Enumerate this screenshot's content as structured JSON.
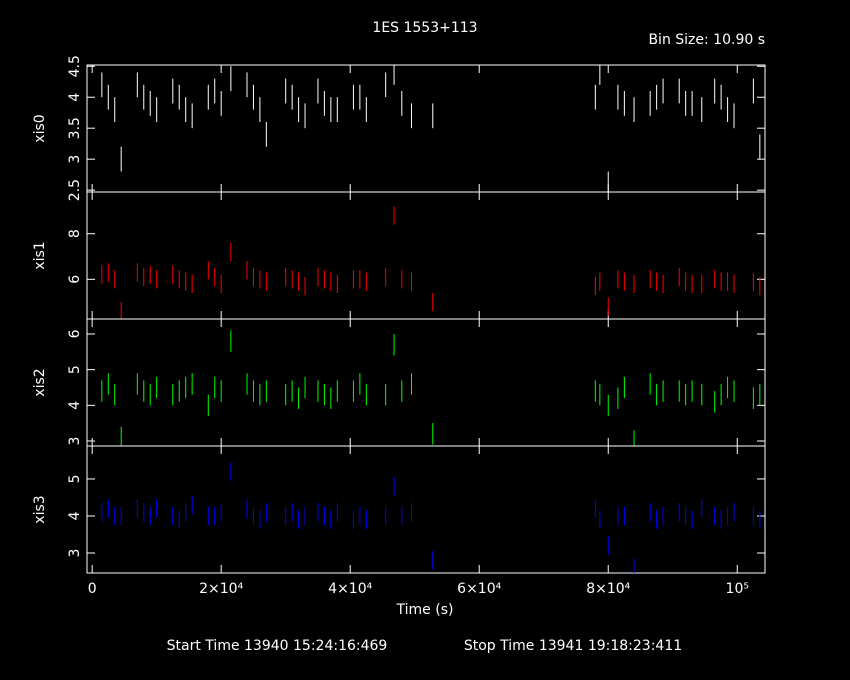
{
  "title": "1ES 1553+113",
  "bin_size": "Bin Size: 10.90 s",
  "xlabel": "Time (s)",
  "start_time": "Start Time 13940 15:24:16:469",
  "stop_time": "Stop Time 13941 19:18:23:411",
  "chart_data": [
    {
      "type": "scatter",
      "ylabel": "xis0",
      "color": "#ffffff",
      "xlim": [
        -800,
        104300
      ],
      "ylim": [
        2.47,
        4.52
      ],
      "yticks": [
        2.5,
        3,
        3.5,
        4,
        4.5
      ],
      "yerr": 0.2,
      "x": [
        1500,
        2500,
        3500,
        4500,
        7000,
        8000,
        9000,
        10000,
        12500,
        13500,
        14500,
        15500,
        18000,
        19000,
        20000,
        21500,
        24000,
        25000,
        26000,
        27000,
        30000,
        31000,
        32000,
        33000,
        35000,
        36000,
        37000,
        38000,
        40500,
        41500,
        42500,
        45500,
        46800,
        48000,
        49500,
        52800,
        78000,
        78700,
        80000,
        81500,
        82500,
        84000,
        86500,
        87500,
        88500,
        91000,
        92000,
        93000,
        94500,
        96500,
        97500,
        98500,
        99500,
        102500,
        103500
      ],
      "values": [
        4.2,
        4.0,
        3.8,
        3.0,
        4.2,
        4.0,
        3.9,
        3.8,
        4.1,
        4.0,
        3.8,
        3.7,
        4.0,
        4.1,
        3.9,
        4.3,
        4.2,
        4.0,
        3.8,
        3.4,
        4.1,
        4.0,
        3.8,
        3.7,
        4.1,
        3.9,
        3.8,
        3.8,
        4.0,
        4.0,
        3.8,
        4.2,
        4.4,
        3.9,
        3.7,
        3.7,
        4.0,
        4.4,
        2.6,
        4.0,
        3.9,
        3.8,
        3.9,
        4.0,
        4.1,
        4.1,
        3.9,
        3.9,
        3.8,
        4.1,
        4.0,
        3.8,
        3.7,
        4.1,
        3.2
      ]
    },
    {
      "type": "scatter",
      "ylabel": "xis1",
      "color": "#ff0000",
      "xlim": [
        -800,
        104300
      ],
      "ylim": [
        4.26,
        9.83
      ],
      "yticks": [
        6,
        8
      ],
      "yerr": 0.4,
      "x": [
        1500,
        2500,
        3500,
        4500,
        7000,
        8000,
        9000,
        10000,
        12500,
        13500,
        14500,
        15500,
        18000,
        19000,
        20000,
        21500,
        24000,
        25000,
        26000,
        27000,
        30000,
        31000,
        32000,
        33000,
        35000,
        36000,
        37000,
        38000,
        40500,
        41500,
        42500,
        45500,
        46800,
        48000,
        49500,
        52800,
        78000,
        78700,
        80000,
        81500,
        82500,
        84000,
        86500,
        87500,
        88500,
        91000,
        92000,
        93000,
        94500,
        96500,
        97500,
        98500,
        99500,
        102500,
        103500
      ],
      "values": [
        6.2,
        6.3,
        6.0,
        4.6,
        6.3,
        6.1,
        6.2,
        6.0,
        6.2,
        6.0,
        5.9,
        5.8,
        6.4,
        6.1,
        5.8,
        7.2,
        6.4,
        6.1,
        6.0,
        5.9,
        6.1,
        6.0,
        5.9,
        5.7,
        6.1,
        6.0,
        5.9,
        5.8,
        6.0,
        6.0,
        5.9,
        6.1,
        8.8,
        6.0,
        5.9,
        5.0,
        5.7,
        5.9,
        4.8,
        6.0,
        5.9,
        5.8,
        6.0,
        5.9,
        5.8,
        6.1,
        5.9,
        5.8,
        5.8,
        6.0,
        5.9,
        5.9,
        5.8,
        5.9,
        5.7
      ]
    },
    {
      "type": "scatter",
      "ylabel": "xis2",
      "color": "#00ff00",
      "xlim": [
        -800,
        104300
      ],
      "ylim": [
        2.86,
        6.42
      ],
      "yticks": [
        3,
        4,
        5,
        6
      ],
      "yerr": 0.3,
      "x": [
        1500,
        2500,
        3500,
        4500,
        7000,
        8000,
        9000,
        10000,
        12500,
        13500,
        14500,
        15500,
        18000,
        19000,
        20000,
        21500,
        24000,
        25000,
        26000,
        27000,
        30000,
        31000,
        32000,
        33000,
        35000,
        36000,
        37000,
        38000,
        40500,
        41500,
        42500,
        45500,
        46800,
        48000,
        49500,
        52800,
        78000,
        78700,
        80000,
        81500,
        82500,
        84000,
        86500,
        87500,
        88500,
        91000,
        92000,
        93000,
        94500,
        96500,
        97500,
        98500,
        99500,
        102500,
        103500
      ],
      "values": [
        4.4,
        4.6,
        4.3,
        3.1,
        4.6,
        4.4,
        4.3,
        4.5,
        4.3,
        4.4,
        4.5,
        4.6,
        4.0,
        4.5,
        4.4,
        5.8,
        4.6,
        4.4,
        4.3,
        4.4,
        4.3,
        4.4,
        4.2,
        4.5,
        4.4,
        4.3,
        4.2,
        4.4,
        4.4,
        4.6,
        4.3,
        4.3,
        5.7,
        4.4,
        4.6,
        3.2,
        4.4,
        4.3,
        4.0,
        4.2,
        4.5,
        3.0,
        4.6,
        4.3,
        4.4,
        4.4,
        4.3,
        4.4,
        4.3,
        4.1,
        4.3,
        4.5,
        4.4,
        4.2,
        4.3
      ]
    },
    {
      "type": "scatter",
      "ylabel": "xis3",
      "color": "#0000ff",
      "xlim": [
        -800,
        104300
      ],
      "ylim": [
        2.46,
        5.89
      ],
      "yticks": [
        3,
        4,
        5
      ],
      "yerr": 0.25,
      "xticks": [
        {
          "value": 0,
          "label": "0"
        },
        {
          "value": 20000,
          "label": "2×10⁴"
        },
        {
          "value": 40000,
          "label": "4×10⁴"
        },
        {
          "value": 60000,
          "label": "6×10⁴"
        },
        {
          "value": 80000,
          "label": "8×10⁴"
        },
        {
          "value": 100000,
          "label": "10⁵"
        }
      ],
      "x": [
        1500,
        2500,
        3500,
        4500,
        7000,
        8000,
        9000,
        10000,
        12500,
        13500,
        14500,
        15500,
        18000,
        19000,
        20000,
        21500,
        24000,
        25000,
        26000,
        27000,
        30000,
        31000,
        32000,
        33000,
        35000,
        36000,
        37000,
        38000,
        40500,
        41500,
        42500,
        45500,
        46800,
        48000,
        49500,
        52800,
        78000,
        78700,
        80000,
        81500,
        82500,
        84000,
        86500,
        87500,
        88500,
        91000,
        92000,
        93000,
        94500,
        96500,
        97500,
        98500,
        99500,
        102500,
        103500
      ],
      "values": [
        4.1,
        4.2,
        4.0,
        4.0,
        4.2,
        4.1,
        4.0,
        4.2,
        4.0,
        3.9,
        4.1,
        4.3,
        4.0,
        4.0,
        4.1,
        5.2,
        4.2,
        4.0,
        3.9,
        4.1,
        4.0,
        4.1,
        3.9,
        4.0,
        4.1,
        4.0,
        3.9,
        4.1,
        3.9,
        4.0,
        3.9,
        4.0,
        4.8,
        4.0,
        4.1,
        2.8,
        4.2,
        3.9,
        3.2,
        4.0,
        4.0,
        2.6,
        4.1,
        3.9,
        4.0,
        4.1,
        4.0,
        3.9,
        4.2,
        4.0,
        3.9,
        4.0,
        4.1,
        4.0,
        3.9
      ]
    }
  ]
}
